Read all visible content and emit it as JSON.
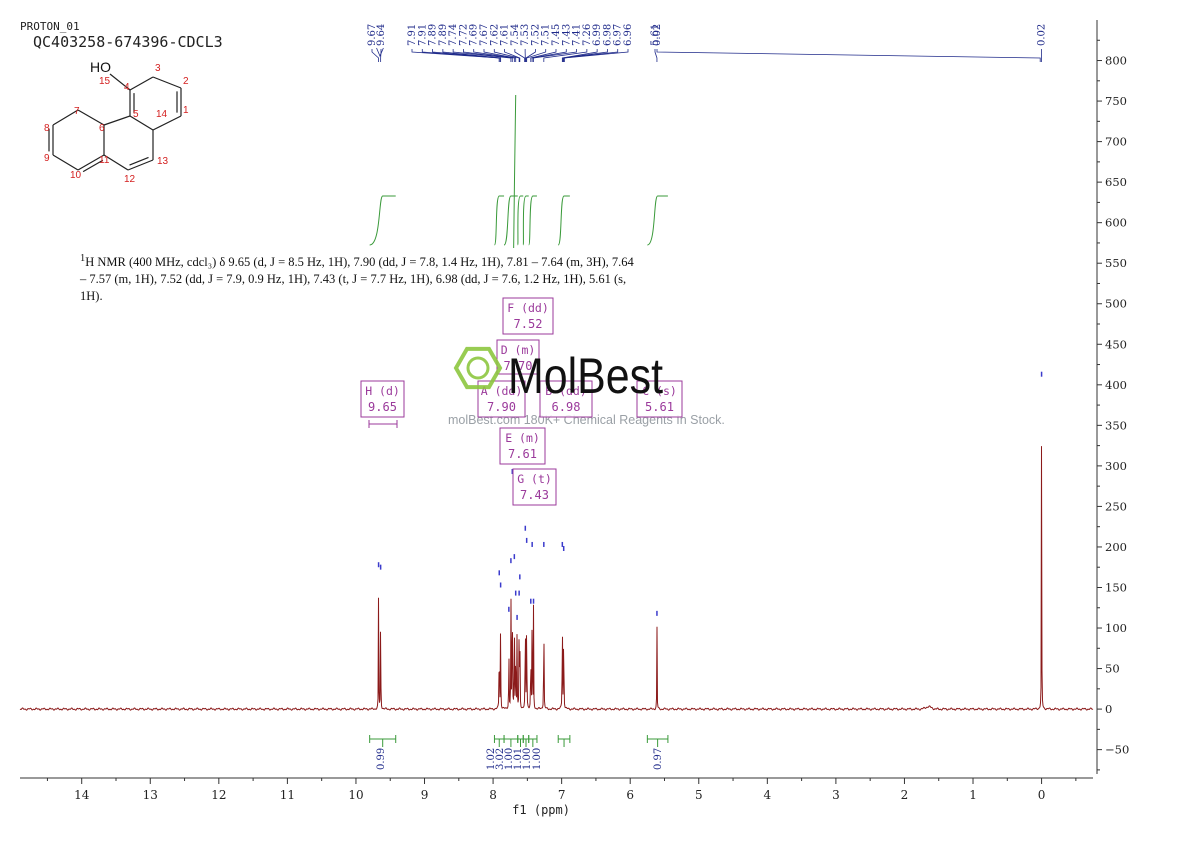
{
  "header": {
    "experiment": "PROTON_01",
    "sample": "QC403258-674396-CDCL3"
  },
  "nmr_text": {
    "sup": "1",
    "body": "H NMR (400 MHz, cdcl₃) δ 9.65 (d, J = 8.5 Hz, 1H), 7.90 (dd, J = 7.8, 1.4 Hz, 1H), 7.81 – 7.64 (m, 3H), 7.64 – 7.57 (m, 1H), 7.52 (dd, J = 7.9, 0.9 Hz, 1H), 7.43 (t, J = 7.7 Hz, 1H), 6.98 (dd, J = 7.6, 1.2 Hz, 1H), 5.61 (s, 1H)."
  },
  "watermark": {
    "brand": "MolBest",
    "tagline": "molBest.com 180K+ Chemical Reagents In Stock."
  },
  "structure": {
    "oh_label": "HO",
    "atom_numbers": [
      "1",
      "2",
      "3",
      "4",
      "5",
      "6",
      "7",
      "8",
      "9",
      "10",
      "11",
      "12",
      "13",
      "14",
      "15"
    ]
  },
  "colors": {
    "spectrum": "#8b1a1a",
    "peak_label": "#1f2a8a",
    "integral": "#3a9a3a",
    "multiplet_box": "#9b3a9b",
    "atom_number": "#d42020"
  },
  "chart_data": {
    "type": "line",
    "xlabel": "f1 (ppm)",
    "x_range": [
      14.9,
      -0.75
    ],
    "y_range": [
      -85,
      850
    ],
    "x_ticks": [
      14,
      13,
      12,
      11,
      10,
      9,
      8,
      7,
      6,
      5,
      4,
      3,
      2,
      1,
      0
    ],
    "y_ticks": [
      -50,
      0,
      50,
      100,
      150,
      200,
      250,
      300,
      350,
      400,
      450,
      500,
      550,
      600,
      650,
      700,
      750,
      800
    ],
    "peaks": [
      {
        "ppm": 9.67,
        "height": 175
      },
      {
        "ppm": 9.64,
        "height": 172
      },
      {
        "ppm": 7.91,
        "height": 165
      },
      {
        "ppm": 7.89,
        "height": 150
      },
      {
        "ppm": 7.77,
        "height": 120
      },
      {
        "ppm": 7.74,
        "height": 180
      },
      {
        "ppm": 7.72,
        "height": 290
      },
      {
        "ppm": 7.69,
        "height": 185
      },
      {
        "ppm": 7.67,
        "height": 140
      },
      {
        "ppm": 7.65,
        "height": 110
      },
      {
        "ppm": 7.62,
        "height": 140
      },
      {
        "ppm": 7.61,
        "height": 160
      },
      {
        "ppm": 7.53,
        "height": 220
      },
      {
        "ppm": 7.51,
        "height": 205
      },
      {
        "ppm": 7.45,
        "height": 130
      },
      {
        "ppm": 7.43,
        "height": 200
      },
      {
        "ppm": 7.41,
        "height": 130
      },
      {
        "ppm": 7.26,
        "height": 200
      },
      {
        "ppm": 6.99,
        "height": 200
      },
      {
        "ppm": 6.97,
        "height": 195
      },
      {
        "ppm": 5.61,
        "height": 115
      },
      {
        "ppm": 0.0,
        "height": 410
      }
    ],
    "peak_labels": [
      "9.67",
      "9.64",
      "7.91",
      "7.91",
      "7.89",
      "7.89",
      "7.74",
      "7.72",
      "7.69",
      "7.67",
      "7.62",
      "7.61",
      "7.54",
      "7.53",
      "7.52",
      "7.51",
      "7.45",
      "7.43",
      "7.41",
      "7.26",
      "6.99",
      "6.98",
      "6.97",
      "6.96",
      "5.61",
      "0.02"
    ],
    "integrals": [
      {
        "from": 9.8,
        "to": 9.42,
        "value": "0.99"
      },
      {
        "from": 7.98,
        "to": 7.84,
        "value": "1.02"
      },
      {
        "from": 7.84,
        "to": 7.64,
        "value": "3.02"
      },
      {
        "from": 7.64,
        "to": 7.56,
        "value": "1.00"
      },
      {
        "from": 7.56,
        "to": 7.48,
        "value": "1.01"
      },
      {
        "from": 7.48,
        "to": 7.36,
        "value": "1.00"
      },
      {
        "from": 7.05,
        "to": 6.88,
        "value": "1.00"
      },
      {
        "from": 5.75,
        "to": 5.45,
        "value": "0.97"
      }
    ],
    "integral_curve_steps": [
      {
        "from": 9.8,
        "to": 9.42
      },
      {
        "from": 7.98,
        "to": 7.84
      },
      {
        "from": 7.84,
        "to": 7.64
      },
      {
        "from": 7.64,
        "to": 7.56
      },
      {
        "from": 7.56,
        "to": 7.48
      },
      {
        "from": 7.48,
        "to": 7.36
      },
      {
        "from": 7.05,
        "to": 6.88
      },
      {
        "from": 5.75,
        "to": 5.45
      }
    ],
    "multiplets": [
      {
        "letter": "H",
        "type": "(d)",
        "shift": "9.65",
        "ppm": 9.65
      },
      {
        "letter": "F",
        "type": "(dd)",
        "shift": "7.52",
        "ppm": 7.52
      },
      {
        "letter": "D",
        "type": "(m)",
        "shift": "7.70",
        "ppm": 7.7
      },
      {
        "letter": "A",
        "type": "(dd)",
        "shift": "7.90",
        "ppm": 7.9
      },
      {
        "letter": "B",
        "type": "(dd)",
        "shift": "6.98",
        "ppm": 6.98
      },
      {
        "letter": "C",
        "type": "(s)",
        "shift": "5.61",
        "ppm": 5.61
      },
      {
        "letter": "E",
        "type": "(m)",
        "shift": "7.61",
        "ppm": 7.61
      },
      {
        "letter": "G",
        "type": "(t)",
        "shift": "7.43",
        "ppm": 7.43
      }
    ]
  }
}
